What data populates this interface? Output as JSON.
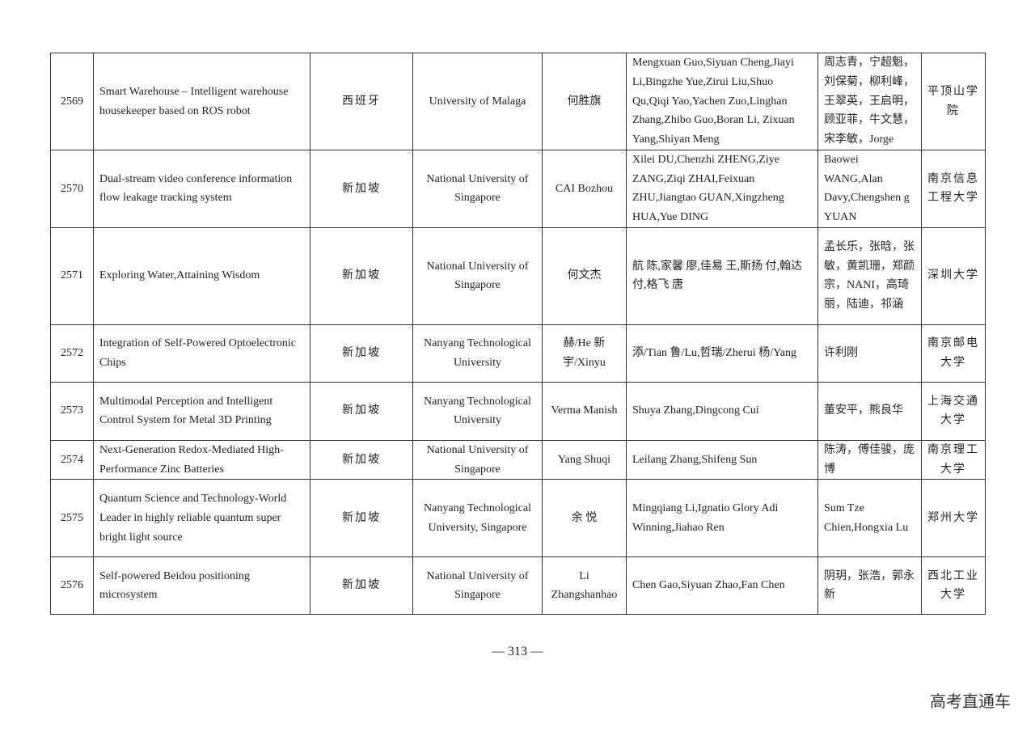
{
  "rows": [
    {
      "no": "2569",
      "title": "Smart Warehouse – Intelligent warehouse housekeeper based on ROS robot",
      "country": "西班牙",
      "university": "University of Malaga",
      "supervisor": "何胜旗",
      "members": "Mengxuan Guo,Siyuan Cheng,Jiayi Li,Bingzhe Yue,Zirui Liu,Shuo Qu,Qiqi Yao,Yachen Zuo,Linghan Zhang,Zhibo Guo,Boran Li, Zixuan Yang,Shiyan Meng",
      "advisors": "周志青，宁超魁，刘保菊，柳利峰，王翠英，王启明，顾亚菲，牛文慧，宋李敏，Jorge",
      "host": "平顶山学院"
    },
    {
      "no": "2570",
      "title": "Dual-stream video conference information flow leakage tracking system",
      "country": "新加坡",
      "university": "National University of Singapore",
      "supervisor": "CAI Bozhou",
      "members": "Xilei DU,Chenzhi ZHENG,Ziye ZANG,Ziqi ZHAI,Feixuan ZHU,Jiangtao GUAN,Xingzheng HUA,Yue DING",
      "advisors": "Baowei WANG,Alan Davy,Chengshen g YUAN",
      "host": "南京信息工程大学"
    },
    {
      "no": "2571",
      "title": "Exploring Water,Attaining Wisdom",
      "country": "新加坡",
      "university": "National University of Singapore",
      "supervisor": "何文杰",
      "members": "航 陈,家馨 廖,佳易 王,斯扬 付,翰达 付,格飞 唐",
      "advisors": "孟长乐，张晗，张敏，黄凯珊，郑颜宗，NANI，高琦丽，陆迪，祁涵",
      "host": "深圳大学"
    },
    {
      "no": "2572",
      "title": "Integration of Self-Powered Optoelectronic Chips",
      "country": "新加坡",
      "university": "Nanyang Technological University",
      "supervisor": "赫/He 新宇/Xinyu",
      "members": "添/Tian 鲁/Lu,哲瑞/Zherui 杨/Yang",
      "advisors": "许利刚",
      "host": "南京邮电大学"
    },
    {
      "no": "2573",
      "title": "Multimodal Perception and Intelligent Control System for Metal 3D Printing",
      "country": "新加坡",
      "university": "Nanyang Technological University",
      "supervisor": "Verma Manish",
      "members": "Shuya Zhang,Dingcong Cui",
      "advisors": "董安平，熊良华",
      "host": "上海交通大学"
    },
    {
      "no": "2574",
      "title": "Next-Generation Redox-Mediated High-Performance  Zinc Batteries",
      "country": "新加坡",
      "university": "National University of Singapore",
      "supervisor": "Yang Shuqi",
      "members": "Leilang Zhang,Shifeng Sun",
      "advisors": "陈涛，傅佳骏，庞博",
      "host": "南京理工大学"
    },
    {
      "no": "2575",
      "title": "Quantum Science and Technology-World Leader in highly reliable quantum super bright light source",
      "country": "新加坡",
      "university": "Nanyang Technological University, Singapore",
      "supervisor": "余 悦",
      "members": "Mingqiang Li,Ignatio Glory Adi Winning,Jiahao Ren",
      "advisors": "Sum Tze Chien,Hongxia Lu",
      "host": "郑州大学"
    },
    {
      "no": "2576",
      "title": "Self-powered Beidou positioning microsystem",
      "country": "新加坡",
      "university": "National University of Singapore",
      "supervisor": "Li Zhangshanhao",
      "members": "Chen Gao,Siyuan Zhao,Fan Chen",
      "advisors": "阴玥，张浩，郭永新",
      "host": "西北工业大学"
    }
  ],
  "page_number": "— 313 —",
  "watermark": "高考直通车"
}
